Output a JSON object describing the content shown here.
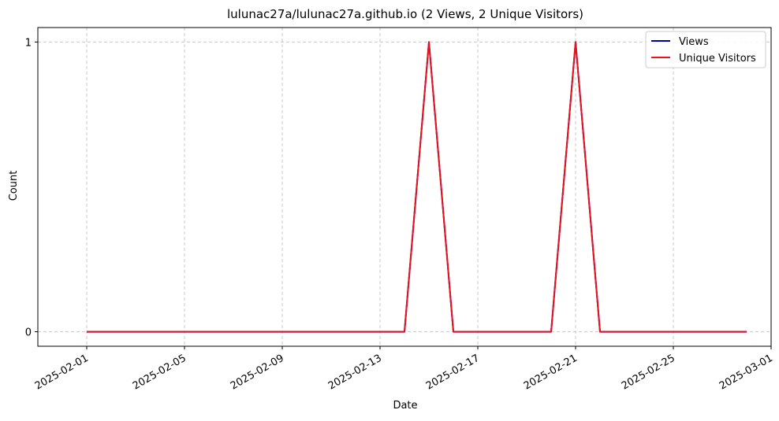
{
  "chart_data": {
    "type": "line",
    "title": "lulunac27a/lulunac27a.github.io (2 Views, 2 Unique Visitors)",
    "xlabel": "Date",
    "ylabel": "Count",
    "x": [
      "2025-02-01",
      "2025-02-02",
      "2025-02-03",
      "2025-02-04",
      "2025-02-05",
      "2025-02-06",
      "2025-02-07",
      "2025-02-08",
      "2025-02-09",
      "2025-02-10",
      "2025-02-11",
      "2025-02-12",
      "2025-02-13",
      "2025-02-14",
      "2025-02-15",
      "2025-02-16",
      "2025-02-17",
      "2025-02-18",
      "2025-02-19",
      "2025-02-20",
      "2025-02-21",
      "2025-02-22",
      "2025-02-23",
      "2025-02-24",
      "2025-02-25",
      "2025-02-26",
      "2025-02-27",
      "2025-02-28"
    ],
    "series": [
      {
        "name": "Views",
        "color": "#0000aa",
        "values": [
          0,
          0,
          0,
          0,
          0,
          0,
          0,
          0,
          0,
          0,
          0,
          0,
          0,
          0,
          1,
          0,
          0,
          0,
          0,
          0,
          1,
          0,
          0,
          0,
          0,
          0,
          0,
          0
        ]
      },
      {
        "name": "Unique Visitors",
        "color": "#e8141c",
        "values": [
          0,
          0,
          0,
          0,
          0,
          0,
          0,
          0,
          0,
          0,
          0,
          0,
          0,
          0,
          1,
          0,
          0,
          0,
          0,
          0,
          1,
          0,
          0,
          0,
          0,
          0,
          0,
          0
        ]
      }
    ],
    "xticks": [
      "2025-02-01",
      "2025-02-05",
      "2025-02-09",
      "2025-02-13",
      "2025-02-17",
      "2025-02-21",
      "2025-02-25",
      "2025-03-01"
    ],
    "yticks": [
      0,
      1
    ],
    "xlim": [
      "2025-01-30",
      "2025-03-01"
    ],
    "ylim": [
      -0.05,
      1.05
    ],
    "grid": true,
    "legend_position": "top-right"
  }
}
